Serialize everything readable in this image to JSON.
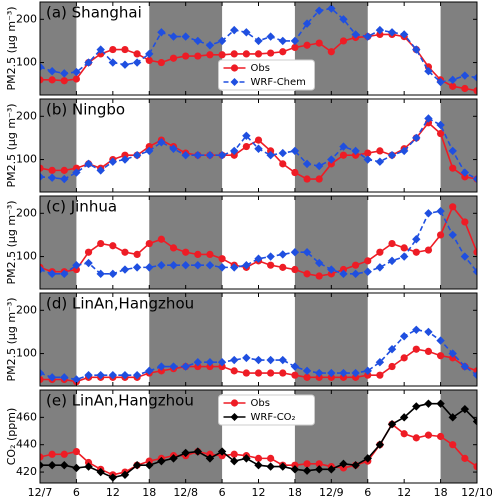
{
  "chart_data": [
    {
      "type": "line",
      "title": "(a) Shanghai",
      "ylabel": "PM2.5 (μg m⁻³)",
      "ylim": [
        25,
        240
      ],
      "yticks": [
        100,
        200
      ],
      "legend": "lower center",
      "shaded": [
        [
          0,
          6
        ],
        [
          18,
          30
        ],
        [
          42,
          54
        ],
        [
          66,
          72
        ]
      ],
      "x": [
        0,
        2,
        4,
        6,
        8,
        10,
        12,
        14,
        16,
        18,
        20,
        22,
        24,
        26,
        28,
        30,
        32,
        34,
        36,
        38,
        40,
        42,
        44,
        46,
        48,
        50,
        52,
        54,
        56,
        58,
        60,
        62,
        64,
        66,
        68,
        70,
        72
      ],
      "series": [
        {
          "name": "Obs",
          "color": "#ee1c25",
          "marker": "o",
          "linestyle": "solid",
          "values": [
            60,
            60,
            58,
            62,
            100,
            120,
            130,
            130,
            120,
            105,
            100,
            110,
            115,
            115,
            118,
            118,
            120,
            120,
            120,
            122,
            125,
            135,
            140,
            145,
            125,
            150,
            158,
            160,
            165,
            165,
            160,
            130,
            90,
            60,
            45,
            40,
            35
          ]
        },
        {
          "name": "WRF-Chem",
          "color": "#1f4fe0",
          "marker": "D",
          "linestyle": "dashed",
          "values": [
            90,
            80,
            75,
            78,
            100,
            130,
            100,
            95,
            100,
            120,
            170,
            160,
            160,
            150,
            140,
            150,
            175,
            170,
            150,
            160,
            150,
            150,
            190,
            220,
            225,
            200,
            165,
            160,
            175,
            170,
            165,
            130,
            80,
            55,
            60,
            70,
            65
          ]
        }
      ]
    },
    {
      "type": "line",
      "title": "(b) Ningbo",
      "ylabel": "PM2.5 (μg m⁻³)",
      "ylim": [
        25,
        240
      ],
      "yticks": [
        100,
        200
      ],
      "shaded": [
        [
          0,
          6
        ],
        [
          18,
          30
        ],
        [
          42,
          54
        ],
        [
          66,
          72
        ]
      ],
      "x": [
        0,
        2,
        4,
        6,
        8,
        10,
        12,
        14,
        16,
        18,
        20,
        22,
        24,
        26,
        28,
        30,
        32,
        34,
        36,
        38,
        40,
        42,
        44,
        46,
        48,
        50,
        52,
        54,
        56,
        58,
        60,
        62,
        64,
        66,
        68,
        70,
        72
      ],
      "series": [
        {
          "color": "#ee1c25",
          "marker": "o",
          "linestyle": "solid",
          "values": [
            80,
            75,
            75,
            80,
            90,
            80,
            100,
            110,
            110,
            130,
            145,
            130,
            115,
            110,
            110,
            110,
            110,
            130,
            145,
            120,
            90,
            70,
            55,
            55,
            90,
            110,
            110,
            115,
            120,
            110,
            125,
            150,
            185,
            160,
            80,
            60,
            55
          ]
        },
        {
          "color": "#1f4fe0",
          "marker": "D",
          "linestyle": "dashed",
          "values": [
            60,
            58,
            55,
            70,
            90,
            75,
            95,
            100,
            110,
            120,
            140,
            125,
            110,
            110,
            110,
            110,
            120,
            155,
            125,
            110,
            115,
            120,
            90,
            85,
            100,
            130,
            120,
            100,
            95,
            110,
            120,
            150,
            195,
            180,
            120,
            70,
            55
          ]
        }
      ]
    },
    {
      "type": "line",
      "title": "(c) Jinhua",
      "ylabel": "PM2.5 (μg m⁻³)",
      "ylim": [
        25,
        240
      ],
      "yticks": [
        100,
        200
      ],
      "shaded": [
        [
          0,
          6
        ],
        [
          18,
          30
        ],
        [
          42,
          54
        ],
        [
          66,
          72
        ]
      ],
      "x": [
        0,
        2,
        4,
        6,
        8,
        10,
        12,
        14,
        16,
        18,
        20,
        22,
        24,
        26,
        28,
        30,
        32,
        34,
        36,
        38,
        40,
        42,
        44,
        46,
        48,
        50,
        52,
        54,
        56,
        58,
        60,
        62,
        64,
        66,
        68,
        70,
        72
      ],
      "series": [
        {
          "color": "#ee1c25",
          "marker": "o",
          "linestyle": "solid",
          "values": [
            75,
            65,
            65,
            70,
            110,
            130,
            125,
            110,
            105,
            130,
            140,
            120,
            110,
            105,
            105,
            95,
            80,
            75,
            90,
            80,
            75,
            70,
            60,
            55,
            60,
            70,
            80,
            90,
            110,
            130,
            120,
            110,
            115,
            150,
            215,
            180,
            110
          ]
        },
        {
          "color": "#1f4fe0",
          "marker": "D",
          "linestyle": "dashed",
          "values": [
            70,
            60,
            60,
            80,
            85,
            60,
            60,
            70,
            75,
            75,
            80,
            80,
            80,
            80,
            80,
            75,
            75,
            80,
            95,
            100,
            105,
            110,
            110,
            85,
            70,
            60,
            60,
            65,
            75,
            90,
            100,
            140,
            200,
            205,
            150,
            100,
            65
          ]
        }
      ]
    },
    {
      "type": "line",
      "title": "(d) LinAn,Hangzhou",
      "ylabel": "PM2.5 (μg m⁻³)",
      "ylim": [
        25,
        240
      ],
      "yticks": [
        100,
        200
      ],
      "shaded": [
        [
          0,
          6
        ],
        [
          18,
          30
        ],
        [
          42,
          54
        ],
        [
          66,
          72
        ]
      ],
      "x": [
        0,
        2,
        4,
        6,
        8,
        10,
        12,
        14,
        16,
        18,
        20,
        22,
        24,
        26,
        28,
        30,
        32,
        34,
        36,
        38,
        40,
        42,
        44,
        46,
        48,
        50,
        52,
        54,
        56,
        58,
        60,
        62,
        64,
        66,
        68,
        70,
        72
      ],
      "series": [
        {
          "color": "#ee1c25",
          "marker": "o",
          "linestyle": "solid",
          "values": [
            40,
            40,
            40,
            35,
            45,
            45,
            45,
            45,
            45,
            55,
            60,
            65,
            70,
            70,
            70,
            70,
            60,
            55,
            55,
            55,
            55,
            50,
            45,
            45,
            45,
            45,
            45,
            50,
            50,
            70,
            90,
            110,
            105,
            95,
            90,
            70,
            60
          ]
        },
        {
          "color": "#1f4fe0",
          "marker": "D",
          "linestyle": "dashed",
          "values": [
            55,
            45,
            45,
            40,
            50,
            50,
            50,
            50,
            50,
            60,
            70,
            70,
            70,
            80,
            80,
            80,
            85,
            90,
            85,
            85,
            85,
            70,
            60,
            55,
            55,
            55,
            55,
            60,
            80,
            110,
            140,
            155,
            150,
            130,
            100,
            70,
            50
          ]
        }
      ]
    },
    {
      "type": "line",
      "title": "(e) LinAn,Hangzhou",
      "ylabel": "CO₂ (ppm)",
      "ylim": [
        412,
        480
      ],
      "yticks": [
        420,
        440,
        460
      ],
      "legend": "upper center",
      "shaded": [
        [
          0,
          6
        ],
        [
          18,
          30
        ],
        [
          42,
          54
        ],
        [
          66,
          72
        ]
      ],
      "xlim": [
        0,
        72
      ],
      "xticks": [
        {
          "value": 0,
          "label": "12/7"
        },
        6,
        12,
        18,
        {
          "value": 24,
          "label": "12/8"
        },
        {
          "value": 30,
          "label": "6"
        },
        {
          "value": 36,
          "label": "12"
        },
        {
          "value": 42,
          "label": "18"
        },
        {
          "value": 48,
          "label": "12/9"
        },
        {
          "value": 54,
          "label": "6"
        },
        {
          "value": 60,
          "label": "12"
        },
        {
          "value": 66,
          "label": "18"
        },
        {
          "value": 72,
          "label": "12/10"
        }
      ],
      "x": [
        0,
        2,
        4,
        6,
        8,
        10,
        12,
        14,
        16,
        18,
        20,
        22,
        24,
        26,
        28,
        30,
        32,
        34,
        36,
        38,
        40,
        42,
        44,
        46,
        48,
        50,
        52,
        54,
        56,
        58,
        60,
        62,
        64,
        66,
        68,
        70,
        72
      ],
      "series": [
        {
          "name": "Obs",
          "color": "#ee1c25",
          "marker": "o",
          "linestyle": "solid",
          "values": [
            431,
            433,
            433,
            435,
            427,
            422,
            418,
            420,
            425,
            428,
            430,
            432,
            432,
            435,
            433,
            432,
            433,
            432,
            430,
            430,
            425,
            425,
            426,
            426,
            424,
            423,
            425,
            428,
            440,
            455,
            448,
            445,
            447,
            446,
            440,
            430,
            424
          ]
        },
        {
          "name": "WRF-CO₂",
          "color": "#000000",
          "marker": "D",
          "linestyle": "solid",
          "values": [
            425,
            425,
            425,
            423,
            424,
            420,
            416,
            418,
            425,
            425,
            428,
            430,
            434,
            435,
            430,
            435,
            428,
            430,
            425,
            424,
            424,
            422,
            421,
            422,
            422,
            426,
            425,
            430,
            440,
            455,
            460,
            468,
            470,
            470,
            460,
            466,
            457
          ]
        }
      ]
    }
  ]
}
